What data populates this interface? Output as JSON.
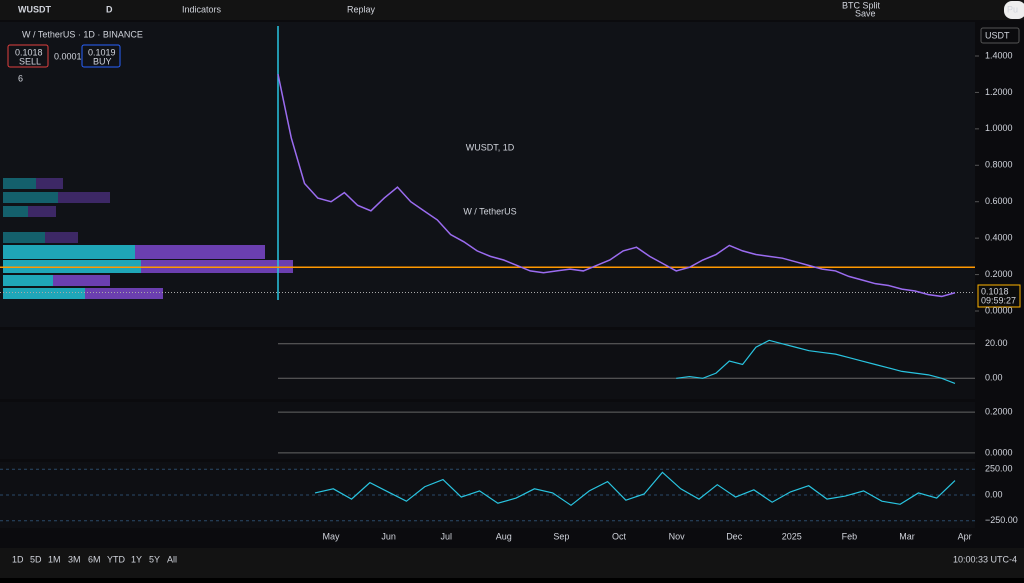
{
  "toolbar": {
    "symbol": "WUSDT",
    "interval": "D",
    "indicators": "Indicators",
    "replay": "Replay",
    "layout_name": "BTC Split",
    "layout_status": "Save",
    "publish": "Pu"
  },
  "legend": {
    "title": "W / TetherUS · 1D · BINANCE",
    "sell_price": "0.1018",
    "sell": "SELL",
    "spread": "0.0001",
    "buy_price": "0.1019",
    "buy": "BUY",
    "indicators_count": "6"
  },
  "watermark": {
    "symbol": "WUSDT, 1D",
    "name": "W / TetherUS"
  },
  "currency": "USDT",
  "price_label": {
    "price": "0.1018",
    "countdown": "09:59:27"
  },
  "main_chart": {
    "type": "line",
    "ylim": [
      -0.05,
      1.55
    ],
    "yticks": [
      {
        "value": 1.4,
        "label": "1.4000"
      },
      {
        "value": 1.2,
        "label": "1.2000"
      },
      {
        "value": 1,
        "label": "1.0000"
      },
      {
        "value": 0.8,
        "label": "0.8000"
      },
      {
        "value": 0.6,
        "label": "0.6000"
      },
      {
        "value": 0.4,
        "label": "0.4000"
      },
      {
        "value": 0.2,
        "label": "0.2000"
      },
      {
        "value": 0,
        "label": "0.0000"
      }
    ],
    "hline": 0.24,
    "current": 0.1018,
    "series": [
      {
        "color": "#9b6cf0",
        "values": [
          1.3,
          0.95,
          0.7,
          0.62,
          0.6,
          0.65,
          0.58,
          0.55,
          0.62,
          0.68,
          0.6,
          0.55,
          0.5,
          0.42,
          0.38,
          0.33,
          0.3,
          0.28,
          0.25,
          0.22,
          0.21,
          0.22,
          0.23,
          0.22,
          0.25,
          0.28,
          0.33,
          0.35,
          0.3,
          0.26,
          0.22,
          0.24,
          0.28,
          0.31,
          0.36,
          0.33,
          0.31,
          0.3,
          0.29,
          0.27,
          0.25,
          0.23,
          0.22,
          0.19,
          0.17,
          0.15,
          0.14,
          0.12,
          0.11,
          0.09,
          0.08,
          0.1
        ]
      }
    ]
  },
  "pane2": {
    "ylim": [
      -12,
      28
    ],
    "yticks": [
      {
        "value": 20,
        "label": "20.00"
      },
      {
        "value": 0,
        "label": "0.00"
      }
    ],
    "color": "#29c4e0",
    "values": [
      0,
      1,
      0,
      3,
      10,
      8,
      18,
      22,
      20,
      18,
      16,
      15,
      14,
      12,
      10,
      8,
      6,
      4,
      3,
      2,
      0,
      -3
    ]
  },
  "pane3": {
    "ylim": [
      -0.03,
      0.25
    ],
    "yticks": [
      {
        "value": 0.2,
        "label": "0.2000"
      },
      {
        "value": 0,
        "label": "0.0000"
      }
    ]
  },
  "pane4": {
    "ylim": [
      -320,
      320
    ],
    "yticks": [
      {
        "value": 250,
        "label": "250.00"
      },
      {
        "value": 0,
        "label": "0.00"
      },
      {
        "value": -250,
        "label": "−250.00"
      }
    ],
    "color": "#29c4e0",
    "values": [
      20,
      60,
      -40,
      120,
      30,
      -60,
      80,
      150,
      -20,
      40,
      -80,
      -30,
      60,
      20,
      -100,
      40,
      130,
      -50,
      10,
      220,
      60,
      -40,
      100,
      -20,
      50,
      -70,
      30,
      90,
      -40,
      -10,
      40,
      -60,
      -90,
      20,
      -30,
      140
    ]
  },
  "x_axis": [
    "May",
    "Jun",
    "Jul",
    "Aug",
    "Sep",
    "Oct",
    "Nov",
    "Dec",
    "2025",
    "Feb",
    "Mar",
    "Apr"
  ],
  "bottom_bar": {
    "ranges": [
      "1D",
      "5D",
      "1M",
      "3M",
      "6M",
      "YTD",
      "1Y",
      "5Y",
      "All"
    ],
    "time": "10:00:33 UTC-4"
  }
}
